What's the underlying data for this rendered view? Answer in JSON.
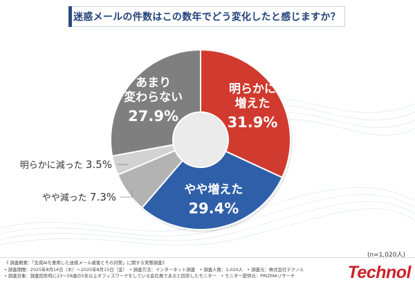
{
  "title": "迷惑メールの件数はこの数年でどう変化したと感じますか？",
  "sample_size": "(n=1,020人)",
  "notes": [
    "《 調査概要：「生成AIを悪用した迷惑メール被害とその対策」に関する実態調査》",
    "• 調査期間：2025年8月14日（木）〜2025年8月15日（金）　• 調査方法：インターネット調査　• 調査人数：1,020人　• 調査元：株式会社テクノル",
    "• 調査対象：調査回答時に23〜59歳の5年以上オフィスワークをしている会社員であると回答したモニター　• モニター提供元：PRIZMAリサーチ"
  ],
  "logo": "Technol",
  "colors": {
    "title": "#1f3f78",
    "accent_red": "#cc2229"
  },
  "chart_data": {
    "type": "pie",
    "donut": true,
    "title": "迷惑メールの件数はこの数年でどう変化したと感じますか？",
    "slices": [
      {
        "label": "明らかに増えた",
        "label_lines": [
          "明らかに",
          "増えた"
        ],
        "value": 31.9,
        "value_text": "31.9%",
        "color": "#d03a2f",
        "label_inside": true
      },
      {
        "label": "やや増えた",
        "label_lines": [
          "やや増えた"
        ],
        "value": 29.4,
        "value_text": "29.4%",
        "color": "#2f5fa8",
        "label_inside": true
      },
      {
        "label": "やや減った",
        "label_lines": [
          "やや減った"
        ],
        "value": 7.3,
        "value_text": "7.3%",
        "color": "#b3b3b3",
        "label_inside": false
      },
      {
        "label": "明らかに減った",
        "label_lines": [
          "明らかに減った"
        ],
        "value": 3.5,
        "value_text": "3.5%",
        "color": "#d2d2d2",
        "label_inside": false
      },
      {
        "label": "あまり変わらない",
        "label_lines": [
          "あまり",
          "変わらない"
        ],
        "value": 27.9,
        "value_text": "27.9%",
        "color": "#7f7f7f",
        "label_inside": true
      }
    ]
  }
}
